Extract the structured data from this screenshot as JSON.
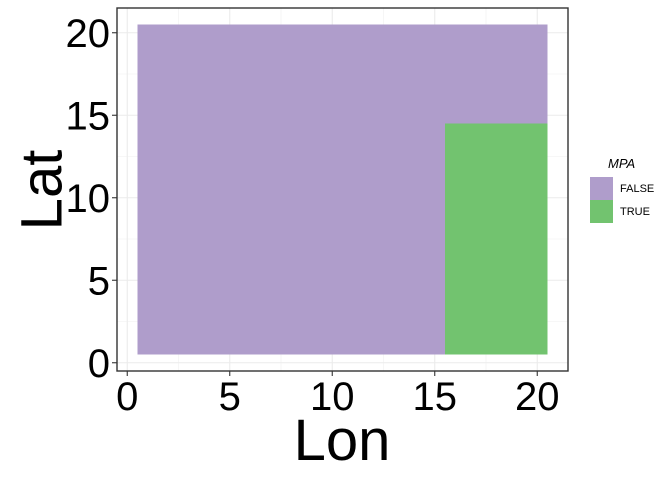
{
  "chart_data": {
    "type": "heatmap",
    "xlabel": "Lon",
    "ylabel": "Lat",
    "xlim": [
      -0.5,
      21.5
    ],
    "ylim": [
      -0.5,
      21.5
    ],
    "x_ticks": [
      0,
      5,
      10,
      15,
      20
    ],
    "y_ticks": [
      0,
      5,
      10,
      15,
      20
    ],
    "grid": true,
    "legend": {
      "title": "MPA",
      "position": "right",
      "entries": [
        {
          "label": "FALSE",
          "color": "#af9dcb"
        },
        {
          "label": "TRUE",
          "color": "#72c36f"
        }
      ]
    },
    "regions": [
      {
        "name": "mpa-false-region",
        "lon": [
          0.5,
          20.5
        ],
        "lat": [
          0.5,
          20.5
        ],
        "mpa": "FALSE",
        "color": "#af9dcb"
      },
      {
        "name": "mpa-true-region",
        "lon": [
          15.5,
          20.5
        ],
        "lat": [
          0.5,
          14.5
        ],
        "mpa": "TRUE",
        "color": "#72c36f"
      }
    ]
  }
}
